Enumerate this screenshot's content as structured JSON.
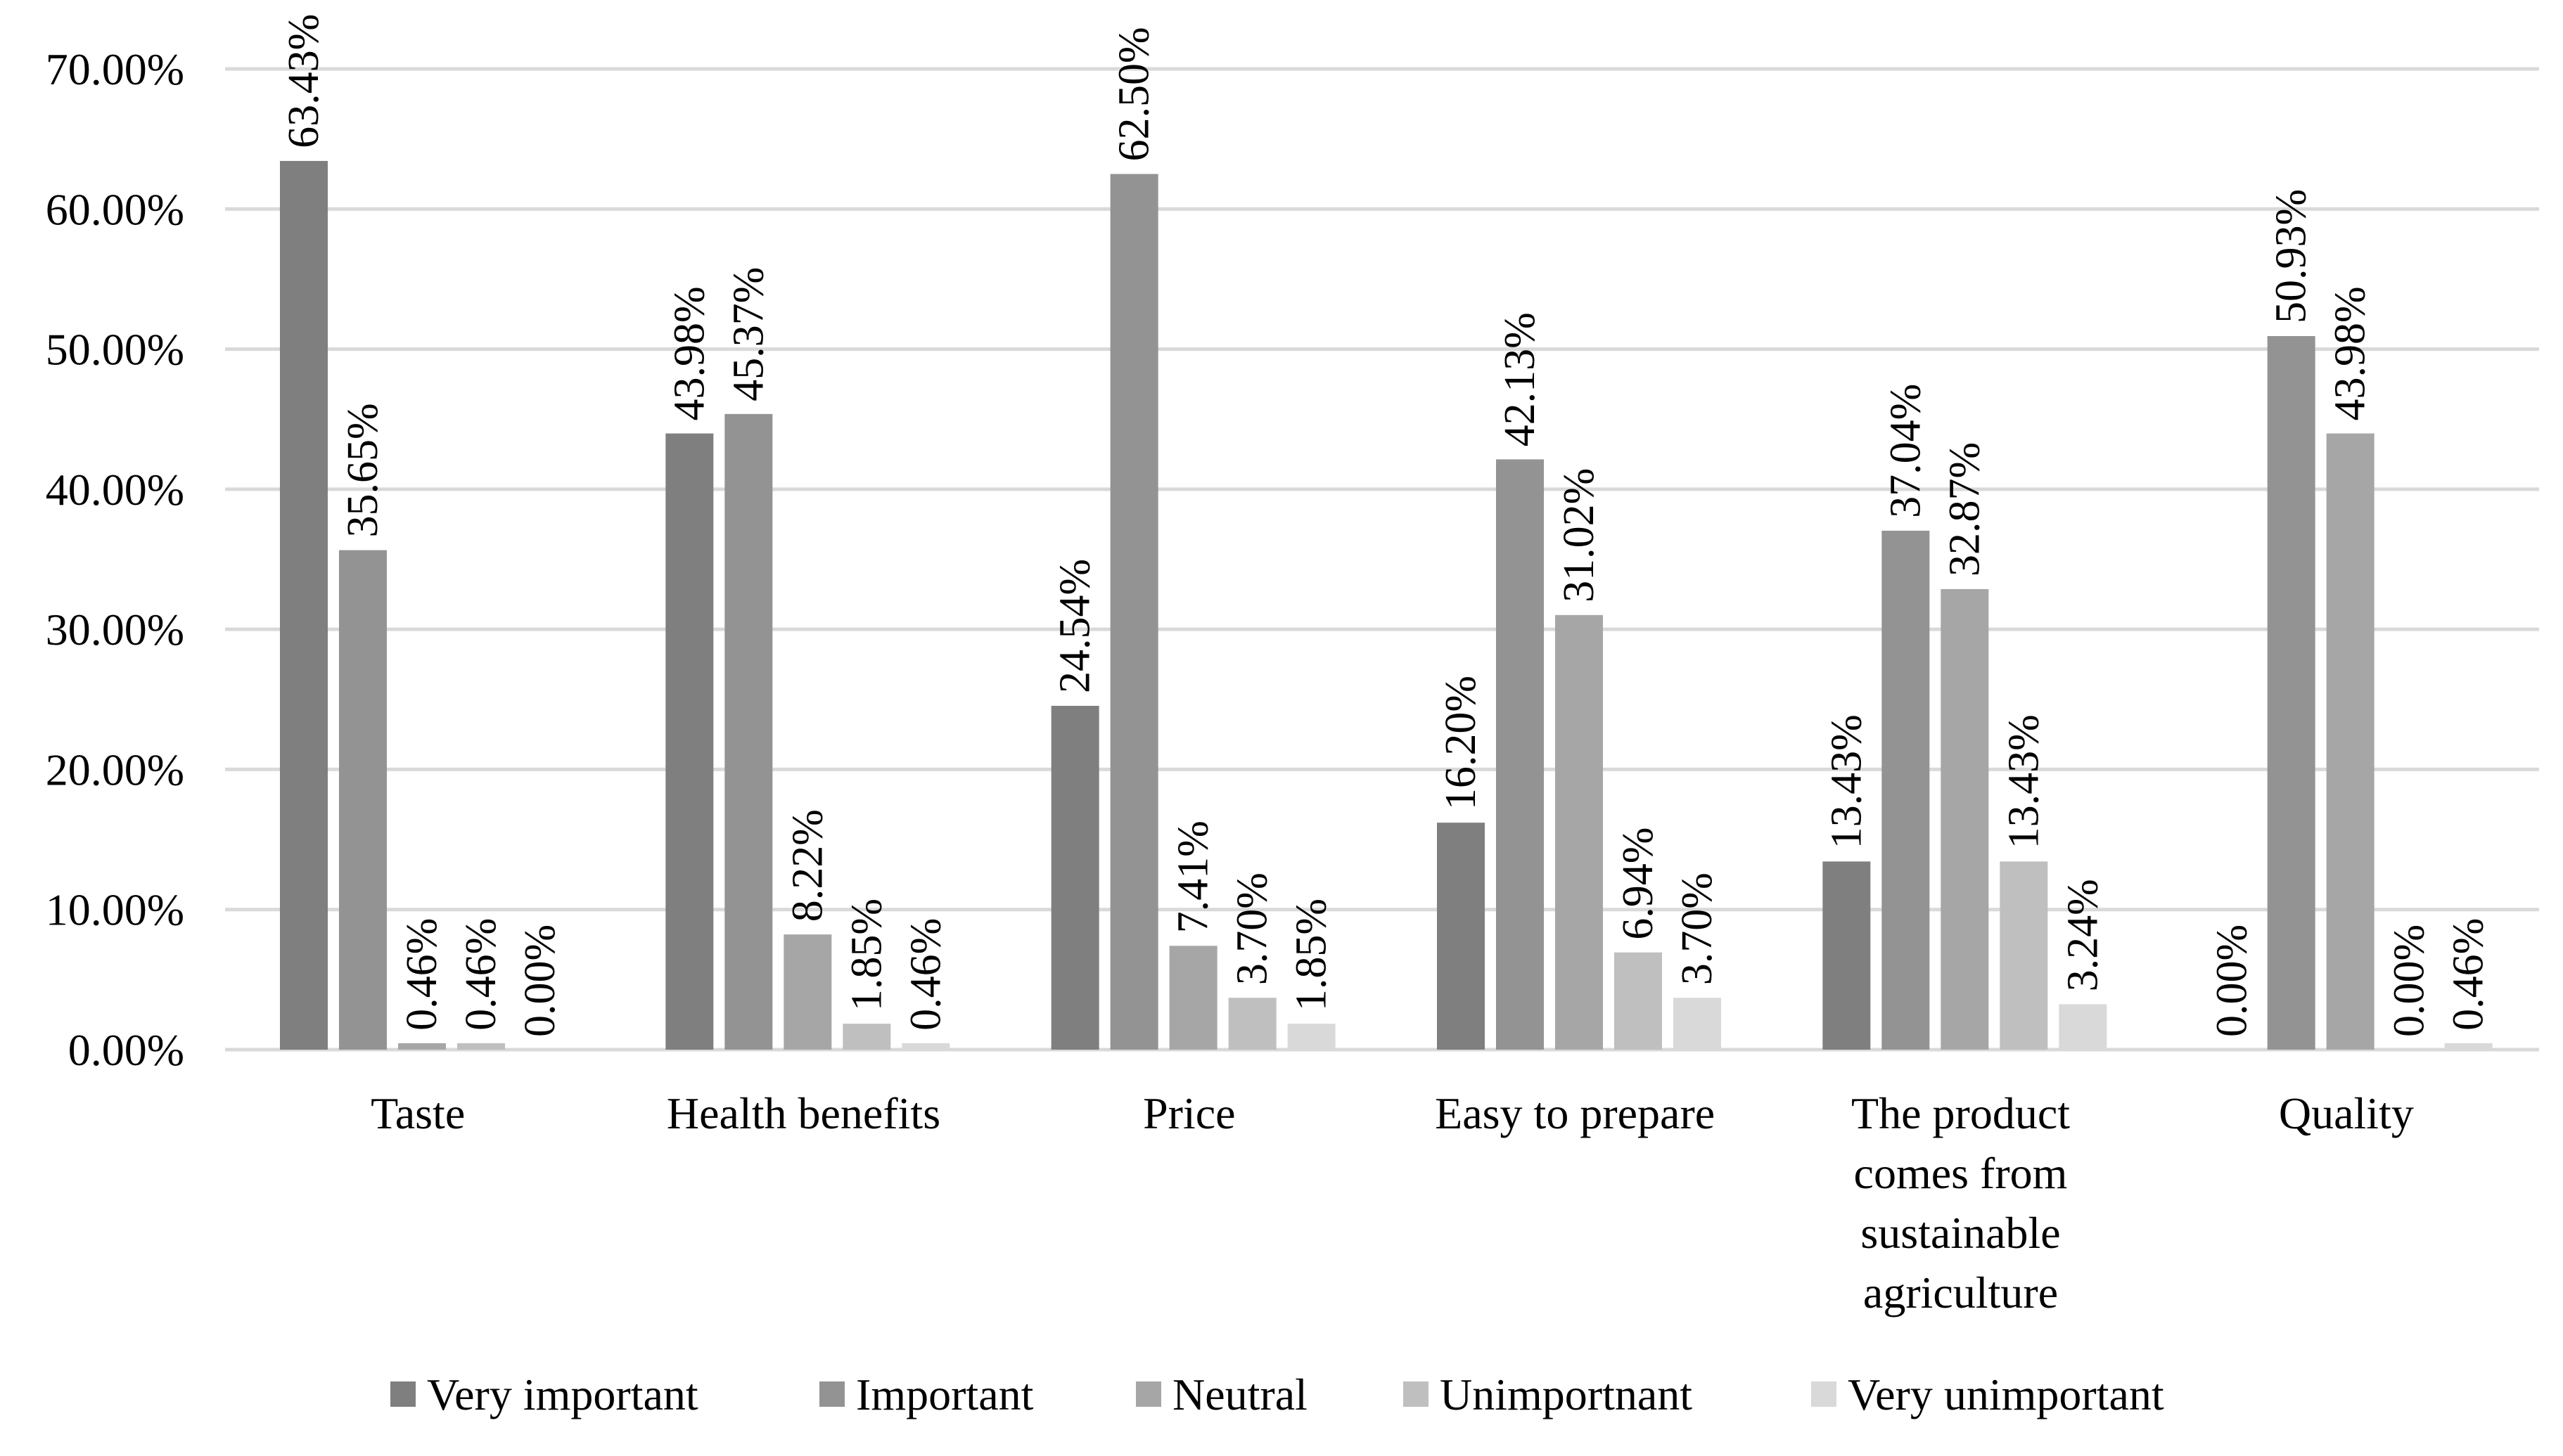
{
  "chart_data": {
    "type": "bar",
    "title": "",
    "xlabel": "",
    "ylabel": "",
    "ylim": [
      0,
      70
    ],
    "y_tick_values": [
      0,
      10,
      20,
      30,
      40,
      50,
      60,
      70
    ],
    "y_tick_labels": [
      "0.00%",
      "10.00%",
      "20.00%",
      "30.00%",
      "40.00%",
      "50.00%",
      "60.00%",
      "70.00%"
    ],
    "grid": true,
    "legend_position": "bottom",
    "categories": [
      "Taste",
      "Health benefits",
      "Price",
      "Easy to prepare",
      "The product comes from sustainable agriculture",
      "Quality"
    ],
    "category_label_lines": [
      [
        "Taste"
      ],
      [
        "Health benefits"
      ],
      [
        "Price"
      ],
      [
        "Easy to prepare"
      ],
      [
        "The product",
        "comes from",
        "sustainable",
        "agriculture"
      ],
      [
        "Quality"
      ]
    ],
    "series": [
      {
        "name": "Very important",
        "color": "#7f7f7f",
        "values": [
          63.43,
          43.98,
          24.54,
          16.2,
          13.43,
          0.0
        ],
        "labels": [
          "63.43%",
          "43.98%",
          "24.54%",
          "16.20%",
          "13.43%",
          "0.00%"
        ]
      },
      {
        "name": "Important",
        "color": "#939393",
        "values": [
          35.65,
          45.37,
          62.5,
          42.13,
          37.04,
          50.93
        ],
        "labels": [
          "35.65%",
          "45.37%",
          "62.50%",
          "42.13%",
          "37.04%",
          "50.93%"
        ]
      },
      {
        "name": "Neutral",
        "color": "#a6a6a6",
        "values": [
          0.46,
          8.22,
          7.41,
          31.02,
          32.87,
          43.98
        ],
        "labels": [
          "0.46%",
          "8.22%",
          "7.41%",
          "31.02%",
          "32.87%",
          "43.98%"
        ]
      },
      {
        "name": "Unimportnant",
        "color": "#bfbfbf",
        "values": [
          0.46,
          1.85,
          3.7,
          6.94,
          13.43,
          0.0
        ],
        "labels": [
          "0.46%",
          "1.85%",
          "3.70%",
          "6.94%",
          "13.43%",
          "0.00%"
        ]
      },
      {
        "name": "Very unimportant",
        "color": "#d9d9d9",
        "values": [
          0.0,
          0.46,
          1.85,
          3.7,
          3.24,
          0.46
        ],
        "labels": [
          "0.00%",
          "0.46%",
          "1.85%",
          "3.70%",
          "3.24%",
          "0.46%"
        ]
      }
    ]
  }
}
